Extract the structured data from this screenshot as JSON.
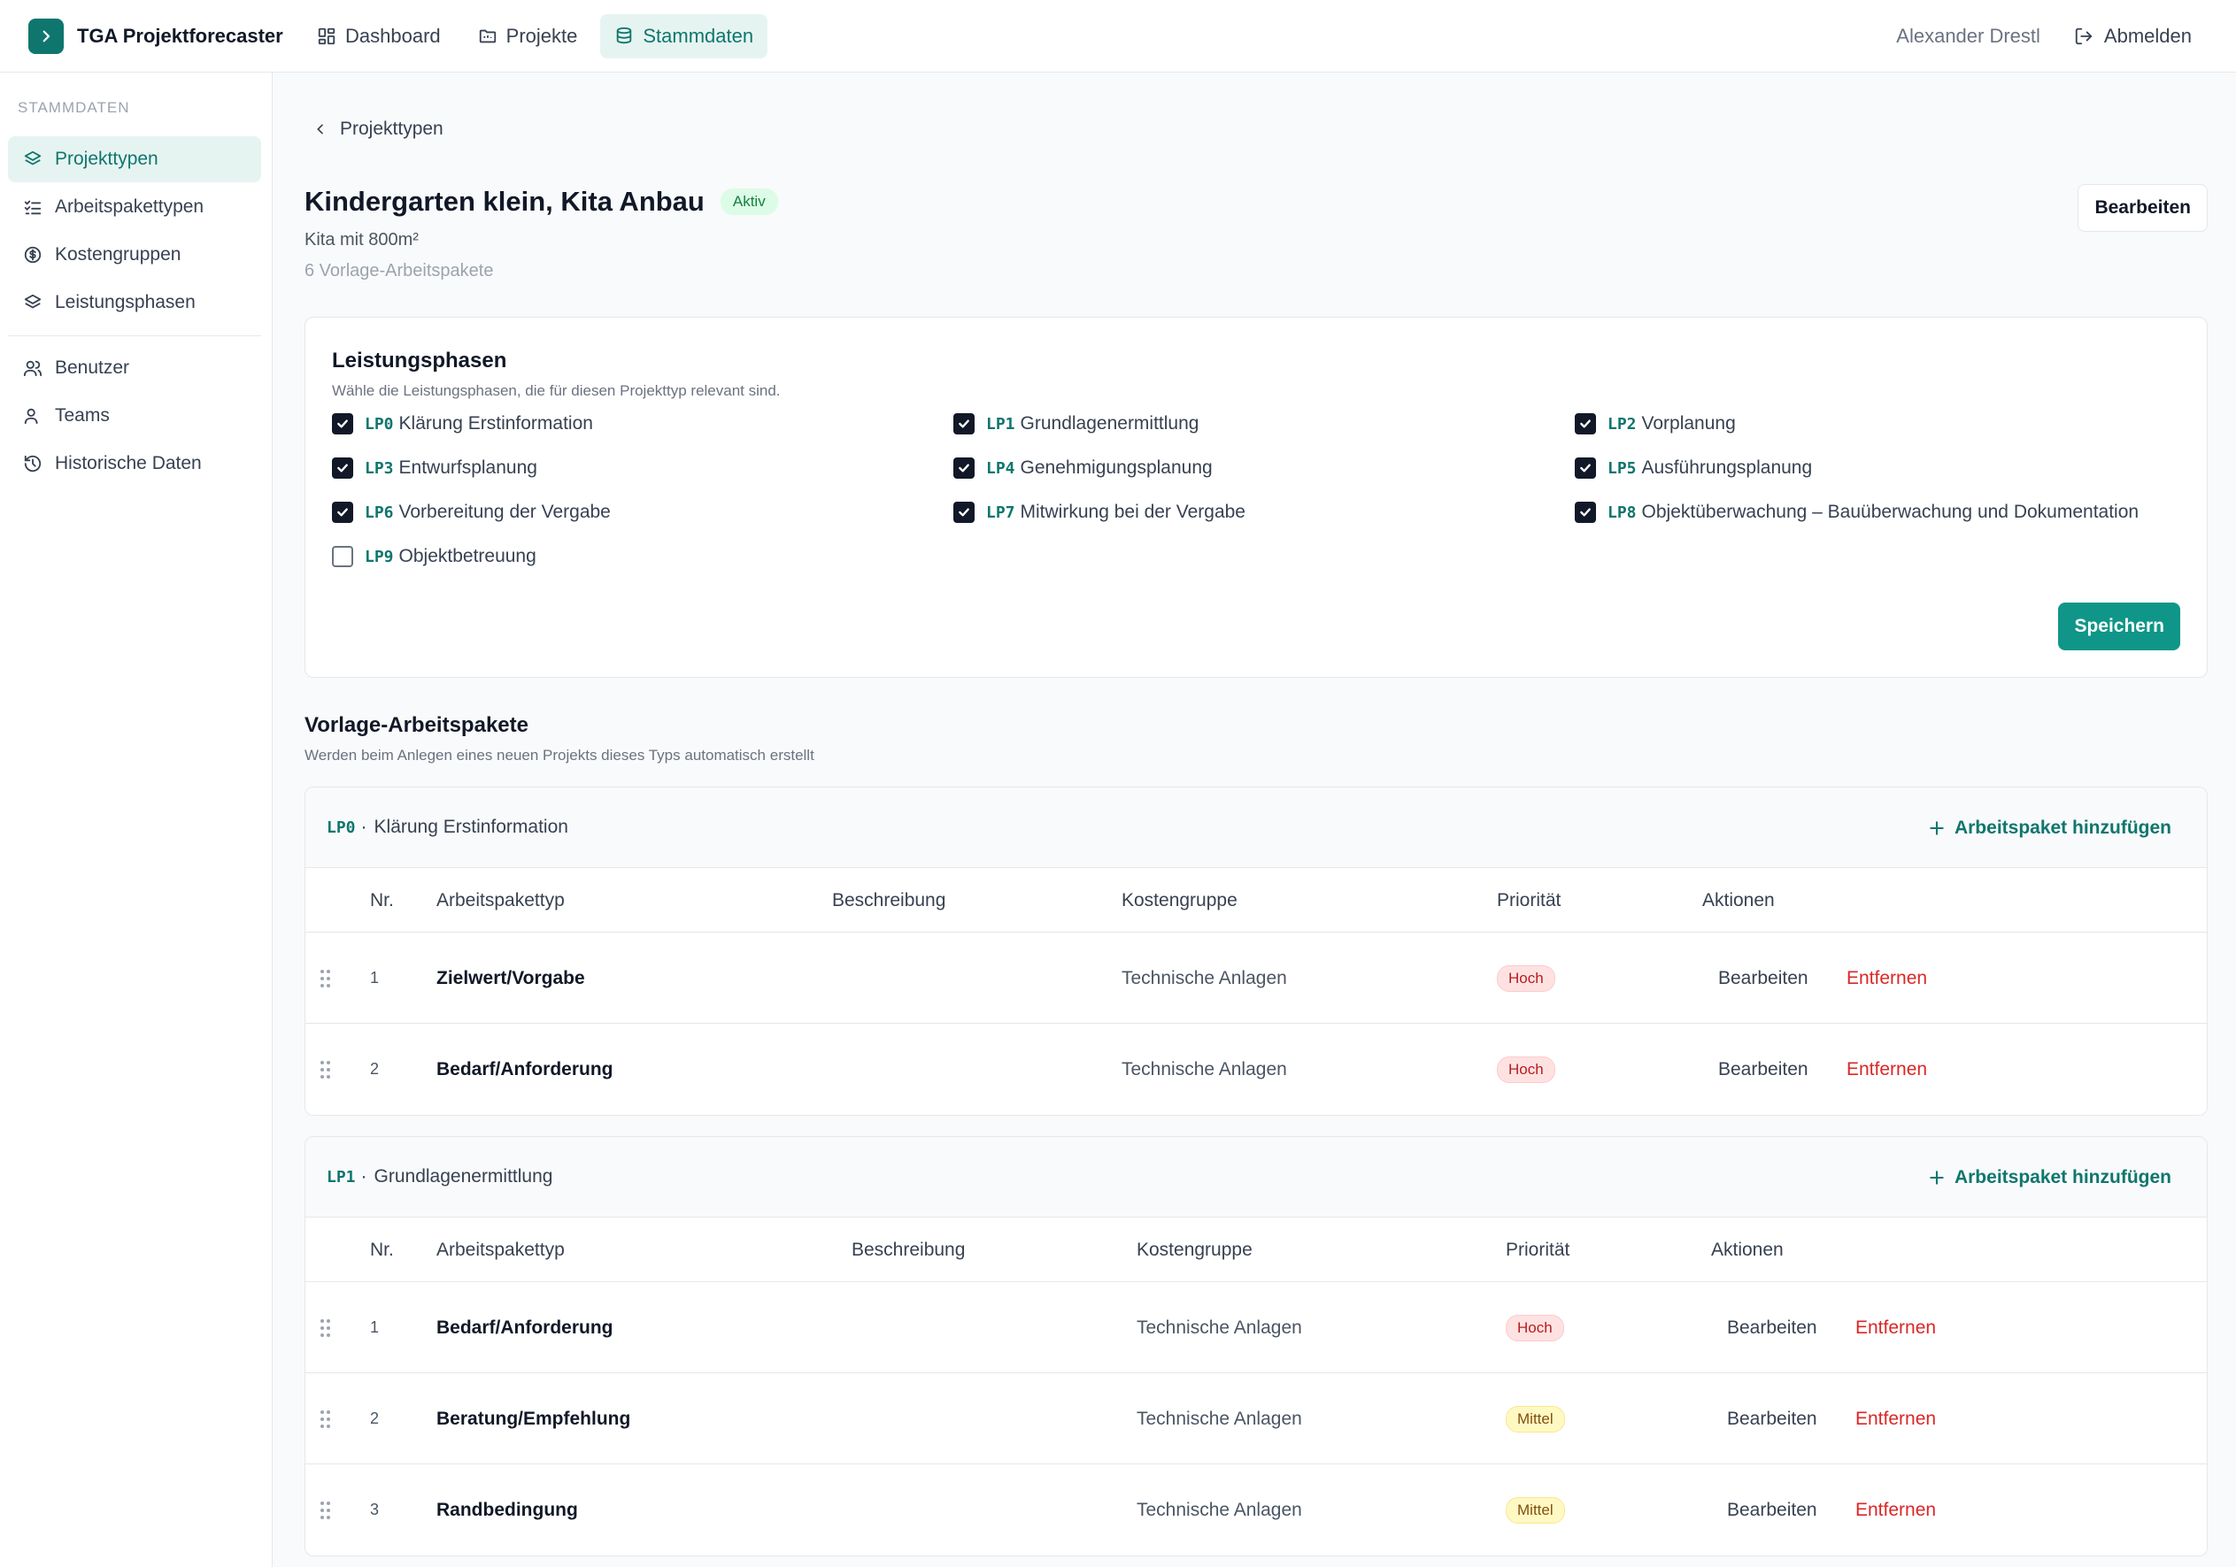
{
  "app": {
    "name": "TGA Projektforecaster"
  },
  "nav": {
    "items": [
      {
        "label": "Dashboard",
        "icon": "dashboard-icon"
      },
      {
        "label": "Projekte",
        "icon": "folder-icon"
      },
      {
        "label": "Stammdaten",
        "icon": "database-icon",
        "active": true
      }
    ]
  },
  "user": {
    "name": "Alexander Drestl",
    "logout_label": "Abmelden"
  },
  "sidebar": {
    "heading": "STAMMDATEN",
    "items": [
      {
        "label": "Projekttypen",
        "icon": "layers-icon",
        "active": true
      },
      {
        "label": "Arbeitspakettypen",
        "icon": "checklist-icon"
      },
      {
        "label": "Kostengruppen",
        "icon": "dollar-circle-icon"
      },
      {
        "label": "Leistungsphasen",
        "icon": "layers-icon"
      },
      {
        "label": "Benutzer",
        "icon": "users-icon"
      },
      {
        "label": "Teams",
        "icon": "user-icon"
      },
      {
        "label": "Historische Daten",
        "icon": "history-icon"
      }
    ]
  },
  "page": {
    "back_label": "Projekttypen",
    "title": "Kindergarten klein, Kita Anbau",
    "status": "Aktiv",
    "subtitle": "Kita mit 800m²",
    "template_count": "6 Vorlage-Arbeitspakete",
    "edit_label": "Bearbeiten"
  },
  "phases_card": {
    "title": "Leistungsphasen",
    "description": "Wähle die Leistungsphasen, die für diesen Projekttyp relevant sind.",
    "save_label": "Speichern",
    "phases": [
      {
        "code": "LP0",
        "label": "Klärung Erstinformation",
        "checked": true
      },
      {
        "code": "LP1",
        "label": "Grundlagenermittlung",
        "checked": true
      },
      {
        "code": "LP2",
        "label": "Vorplanung",
        "checked": true
      },
      {
        "code": "LP3",
        "label": "Entwurfsplanung",
        "checked": true
      },
      {
        "code": "LP4",
        "label": "Genehmigungsplanung",
        "checked": true
      },
      {
        "code": "LP5",
        "label": "Ausführungsplanung",
        "checked": true
      },
      {
        "code": "LP6",
        "label": "Vorbereitung der Vergabe",
        "checked": true
      },
      {
        "code": "LP7",
        "label": "Mitwirkung bei der Vergabe",
        "checked": true
      },
      {
        "code": "LP8",
        "label": "Objektüberwachung – Bauüberwachung und Dokumentation",
        "checked": true
      },
      {
        "code": "LP9",
        "label": "Objektbetreuung",
        "checked": false
      }
    ]
  },
  "templates": {
    "title": "Vorlage-Arbeitspakete",
    "description": "Werden beim Anlegen eines neuen Projekts dieses Typs automatisch erstellt",
    "add_label": "Arbeitspaket hinzufügen",
    "columns": {
      "nr": "Nr.",
      "type": "Arbeitspakettyp",
      "desc": "Beschreibung",
      "cost": "Kostengruppe",
      "prio": "Priorität",
      "actions": "Aktionen"
    },
    "edit_label": "Bearbeiten",
    "remove_label": "Entfernen",
    "groups": [
      {
        "code": "LP0",
        "sep": "·",
        "label": "Klärung Erstinformation",
        "rows": [
          {
            "nr": "1",
            "type": "Zielwert/Vorgabe",
            "desc": "",
            "cost": "Technische Anlagen",
            "prio": "Hoch"
          },
          {
            "nr": "2",
            "type": "Bedarf/Anforderung",
            "desc": "",
            "cost": "Technische Anlagen",
            "prio": "Hoch"
          }
        ]
      },
      {
        "code": "LP1",
        "sep": "·",
        "label": "Grundlagenermittlung",
        "rows": [
          {
            "nr": "1",
            "type": "Bedarf/Anforderung",
            "desc": "",
            "cost": "Technische Anlagen",
            "prio": "Hoch"
          },
          {
            "nr": "2",
            "type": "Beratung/Empfehlung",
            "desc": "",
            "cost": "Technische Anlagen",
            "prio": "Mittel"
          },
          {
            "nr": "3",
            "type": "Randbedingung",
            "desc": "",
            "cost": "Technische Anlagen",
            "prio": "Mittel"
          }
        ]
      }
    ]
  },
  "colors": {
    "accent": "#0f766e",
    "primary_button": "#0f9688",
    "danger": "#dc2626"
  }
}
